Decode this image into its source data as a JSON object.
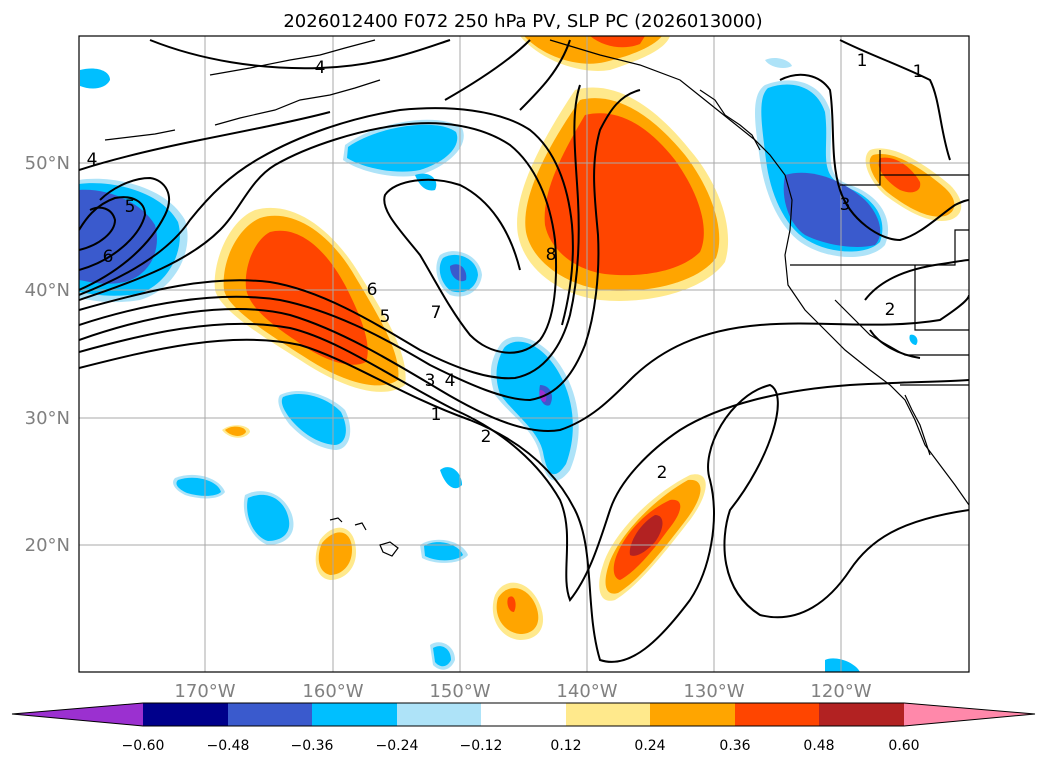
{
  "title": "2026012400 F072 250 hPa PV, SLP PC (2026013000)",
  "map": {
    "lat_labels": [
      "50°N",
      "40°N",
      "30°N",
      "20°N"
    ],
    "lon_labels": [
      "170°W",
      "160°W",
      "150°W",
      "140°W",
      "130°W",
      "120°W"
    ],
    "label_color": "#808080",
    "contour_labels": [
      "4",
      "4",
      "5",
      "6",
      "8",
      "6",
      "5",
      "7",
      "3",
      "4",
      "1",
      "2",
      "1",
      "1",
      "3",
      "2",
      "2"
    ]
  },
  "colorbar": {
    "ticks": [
      "−0.60",
      "−0.48",
      "−0.36",
      "−0.24",
      "−0.12",
      "0.12",
      "0.24",
      "0.36",
      "0.48",
      "0.60"
    ],
    "colors": [
      "#9b30d0",
      "#00008b",
      "#3a5acd",
      "#00bfff",
      "#aee3f8",
      "#ffffff",
      "#ffe98c",
      "#ffa500",
      "#ff4500",
      "#b22222",
      "#ff88aa"
    ]
  }
}
